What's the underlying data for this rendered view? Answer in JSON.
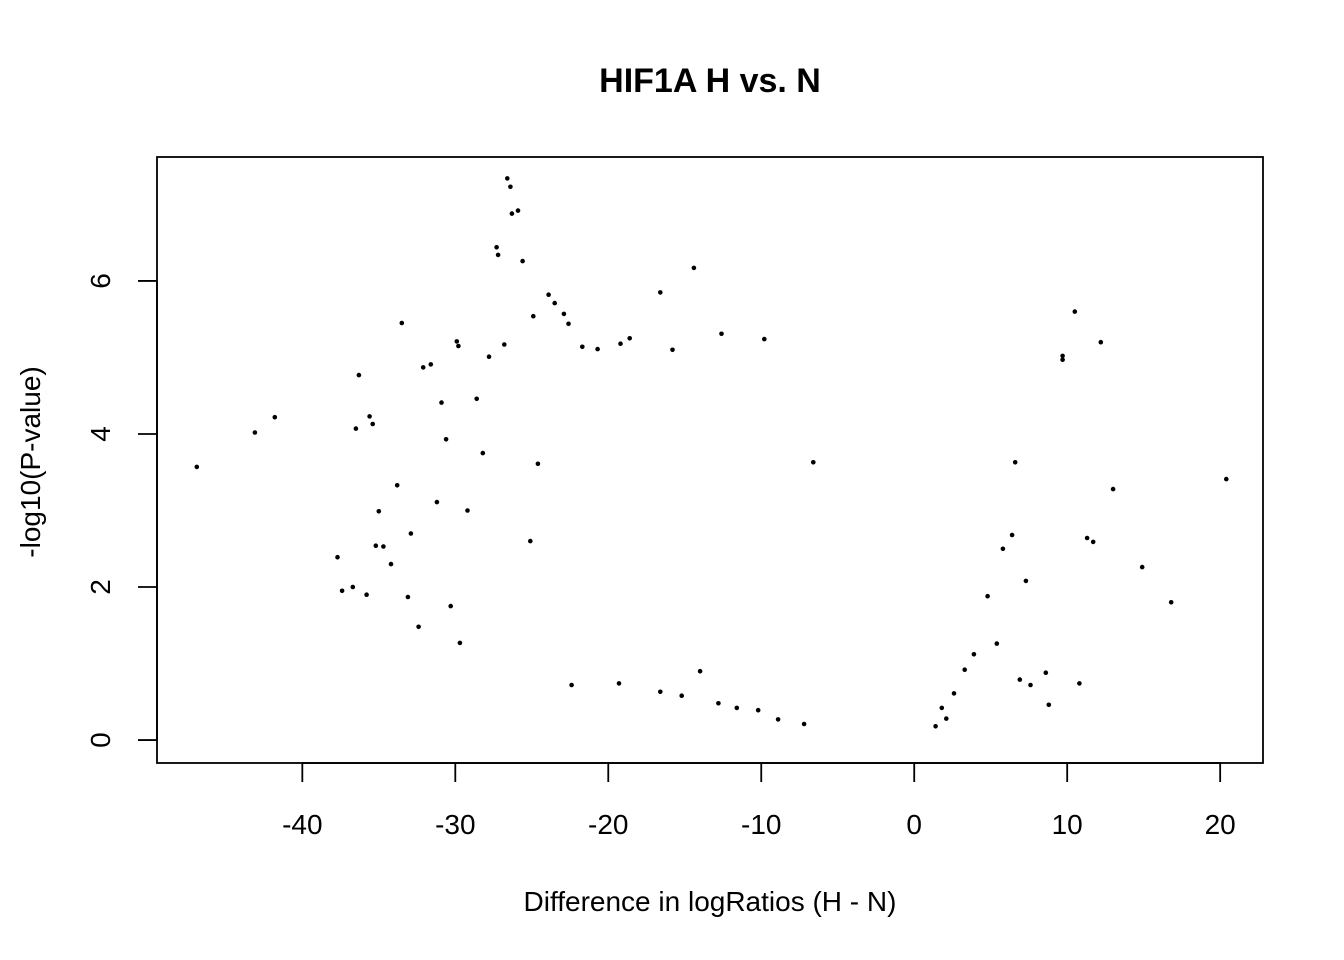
{
  "chart_data": {
    "type": "scatter",
    "title": "HIF1A H vs. N",
    "xlabel": "Difference in logRatios (H - N)",
    "ylabel": "-log10(P-value)",
    "xlim": [
      -49.5,
      22.8
    ],
    "ylim": [
      -0.3,
      7.62
    ],
    "xticks": [
      -40,
      -30,
      -20,
      -10,
      0,
      10,
      20
    ],
    "xtick_labels": [
      "-40",
      "-30",
      "-20",
      "-10",
      "0",
      "10",
      "20"
    ],
    "yticks": [
      0,
      2,
      4,
      6
    ],
    "ytick_labels": [
      "0",
      "2",
      "4",
      "6"
    ],
    "grid": false,
    "legend": "none",
    "point_color": "#000000",
    "points": [
      [
        -46.9,
        3.57
      ],
      [
        -43.1,
        4.02
      ],
      [
        -41.8,
        4.22
      ],
      [
        -37.7,
        2.39
      ],
      [
        -37.4,
        1.95
      ],
      [
        -36.7,
        2.0
      ],
      [
        -36.5,
        4.07
      ],
      [
        -36.3,
        4.77
      ],
      [
        -35.8,
        1.9
      ],
      [
        -35.6,
        4.23
      ],
      [
        -35.4,
        4.13
      ],
      [
        -35.2,
        2.54
      ],
      [
        -35.0,
        2.99
      ],
      [
        -34.7,
        2.53
      ],
      [
        -34.2,
        2.3
      ],
      [
        -33.8,
        3.33
      ],
      [
        -33.5,
        5.45
      ],
      [
        -33.1,
        1.87
      ],
      [
        -32.9,
        2.7
      ],
      [
        -32.4,
        1.48
      ],
      [
        -32.1,
        4.87
      ],
      [
        -31.6,
        4.91
      ],
      [
        -31.2,
        3.11
      ],
      [
        -30.9,
        4.41
      ],
      [
        -30.6,
        3.93
      ],
      [
        -30.3,
        1.75
      ],
      [
        -29.9,
        5.21
      ],
      [
        -29.8,
        5.15
      ],
      [
        -29.7,
        1.27
      ],
      [
        -29.2,
        3.0
      ],
      [
        -28.6,
        4.46
      ],
      [
        -28.2,
        3.75
      ],
      [
        -27.8,
        5.01
      ],
      [
        -27.3,
        6.44
      ],
      [
        -27.2,
        6.34
      ],
      [
        -26.8,
        5.17
      ],
      [
        -26.6,
        7.34
      ],
      [
        -26.4,
        7.23
      ],
      [
        -26.3,
        6.88
      ],
      [
        -25.9,
        6.92
      ],
      [
        -25.6,
        6.26
      ],
      [
        -25.1,
        2.6
      ],
      [
        -24.9,
        5.54
      ],
      [
        -24.6,
        3.61
      ],
      [
        -23.9,
        5.82
      ],
      [
        -23.5,
        5.71
      ],
      [
        -22.9,
        5.57
      ],
      [
        -22.6,
        5.44
      ],
      [
        -21.7,
        5.14
      ],
      [
        -20.7,
        5.11
      ],
      [
        -19.2,
        5.18
      ],
      [
        -18.6,
        5.25
      ],
      [
        -16.6,
        5.85
      ],
      [
        -15.8,
        5.1
      ],
      [
        -14.4,
        6.17
      ],
      [
        -12.6,
        5.31
      ],
      [
        -9.8,
        5.24
      ],
      [
        -6.6,
        3.63
      ],
      [
        6.6,
        3.63
      ],
      [
        9.7,
        5.02
      ],
      [
        9.7,
        4.97
      ],
      [
        10.5,
        5.6
      ],
      [
        11.3,
        2.64
      ],
      [
        11.7,
        2.59
      ],
      [
        12.2,
        5.2
      ],
      [
        13.0,
        3.28
      ],
      [
        14.9,
        2.26
      ],
      [
        16.8,
        1.8
      ],
      [
        20.4,
        3.41
      ],
      [
        10.8,
        0.74
      ],
      [
        8.8,
        0.46
      ],
      [
        8.6,
        0.88
      ],
      [
        7.6,
        0.72
      ],
      [
        7.3,
        2.08
      ],
      [
        6.9,
        0.79
      ],
      [
        5.8,
        2.5
      ],
      [
        6.4,
        2.68
      ],
      [
        5.4,
        1.26
      ],
      [
        4.8,
        1.88
      ],
      [
        3.9,
        1.12
      ],
      [
        3.3,
        0.92
      ],
      [
        2.6,
        0.61
      ],
      [
        2.1,
        0.28
      ],
      [
        1.8,
        0.42
      ],
      [
        1.4,
        0.18
      ],
      [
        -22.4,
        0.72
      ],
      [
        -19.3,
        0.74
      ],
      [
        -16.6,
        0.63
      ],
      [
        -15.2,
        0.58
      ],
      [
        -14.0,
        0.9
      ],
      [
        -12.8,
        0.48
      ],
      [
        -11.6,
        0.42
      ],
      [
        -10.2,
        0.39
      ],
      [
        -8.9,
        0.27
      ],
      [
        -7.2,
        0.21
      ]
    ]
  }
}
